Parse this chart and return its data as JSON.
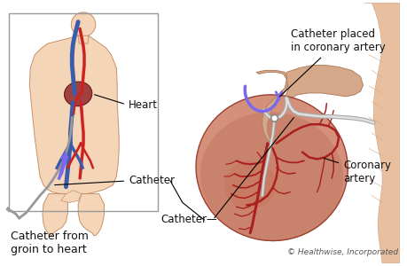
{
  "background_color": "#ffffff",
  "copyright_text": "© Healthwise, Incorporated",
  "copyright_fontsize": 6.5,
  "copyright_color": "#555555",
  "labels": {
    "heart": "Heart",
    "catheter": "Catheter",
    "catheter_from": "Catheter from\ngroin to heart",
    "catheter_placed": "Catheter placed\nin coronary artery",
    "coronary_artery": "Coronary\nartery"
  },
  "label_fontsize": 8.5,
  "label_color": "#111111",
  "body_skin_color": "#f5d5b8",
  "body_skin_dark": "#e8b898",
  "body_outline_color": "#c8906a",
  "heart_color": "#c87860",
  "heart_dark_color": "#8b1a1a",
  "vein_color": "#3a5caa",
  "artery_color": "#cc2222",
  "catheter_color": "#999999",
  "catheter_arrow_color": "#7b68ee",
  "box_edgecolor": "#999999",
  "box_fill": "#f5ede0",
  "chest_color": "#e8c0a0",
  "chest_dark": "#d4a888"
}
